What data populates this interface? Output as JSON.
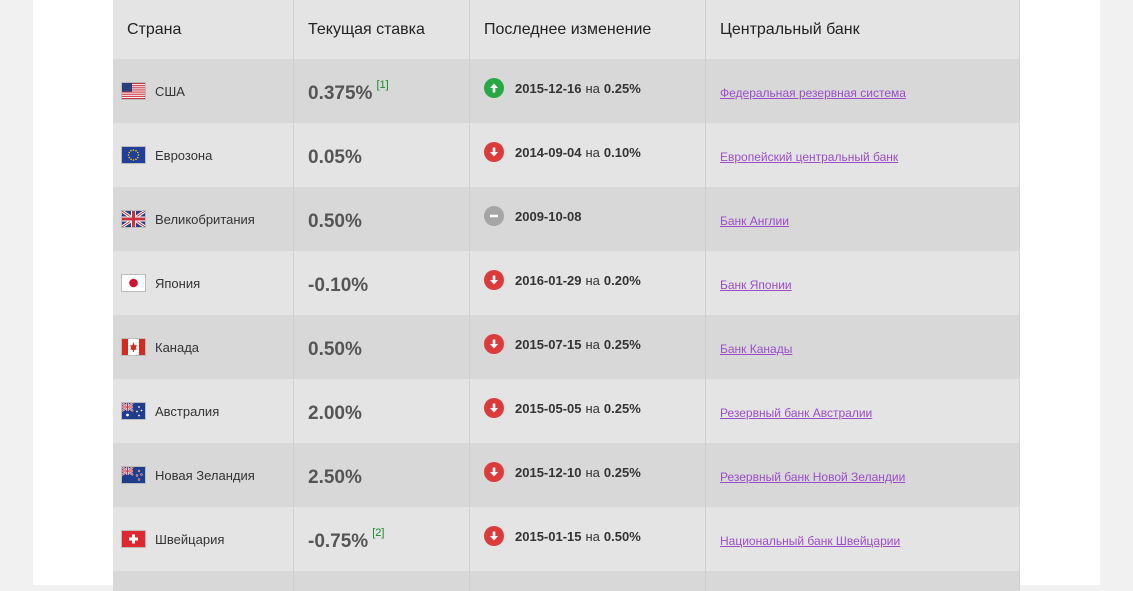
{
  "table": {
    "headers": [
      "Страна",
      "Текущая ставка",
      "Последнее изменение",
      "Центральный банк"
    ],
    "rows": [
      {
        "country": "США",
        "flag": "us-flag-icon",
        "rate": "0.375%",
        "footnote": "[1]",
        "direction": "up",
        "date": "2015-12-16",
        "sep": "на",
        "value": "0.25%",
        "bank": "Федеральная резервная система"
      },
      {
        "country": "Еврозона",
        "flag": "eu-flag-icon",
        "rate": "0.05%",
        "footnote": "",
        "direction": "down",
        "date": "2014-09-04",
        "sep": "на",
        "value": "0.10%",
        "bank": "Европейский центральный банк"
      },
      {
        "country": "Великобритания",
        "flag": "uk-flag-icon",
        "rate": "0.50%",
        "footnote": "",
        "direction": "same",
        "date": "2009-10-08",
        "sep": "",
        "value": "",
        "bank": "Банк Англии"
      },
      {
        "country": "Япония",
        "flag": "jp-flag-icon",
        "rate": "-0.10%",
        "footnote": "",
        "direction": "down",
        "date": "2016-01-29",
        "sep": "на",
        "value": "0.20%",
        "bank": "Банк Японии"
      },
      {
        "country": "Канада",
        "flag": "ca-flag-icon",
        "rate": "0.50%",
        "footnote": "",
        "direction": "down",
        "date": "2015-07-15",
        "sep": "на",
        "value": "0.25%",
        "bank": "Банк Канады"
      },
      {
        "country": "Австралия",
        "flag": "au-flag-icon",
        "rate": "2.00%",
        "footnote": "",
        "direction": "down",
        "date": "2015-05-05",
        "sep": "на",
        "value": "0.25%",
        "bank": "Резервный банк Австралии"
      },
      {
        "country": "Новая Зеландия",
        "flag": "nz-flag-icon",
        "rate": "2.50%",
        "footnote": "",
        "direction": "down",
        "date": "2015-12-10",
        "sep": "на",
        "value": "0.25%",
        "bank": "Резервный банк Новой Зеландии"
      },
      {
        "country": "Швейцария",
        "flag": "ch-flag-icon",
        "rate": "-0.75%",
        "footnote": "[2]",
        "direction": "down",
        "date": "2015-01-15",
        "sep": "на",
        "value": "0.50%",
        "bank": "Национальный банк Швейцарии"
      }
    ]
  },
  "colors": {
    "up": "#28a745",
    "down": "#dc3b3b",
    "same": "#a5a5a5",
    "link": "#9b4dca",
    "footnote": "#1a8a2a"
  }
}
